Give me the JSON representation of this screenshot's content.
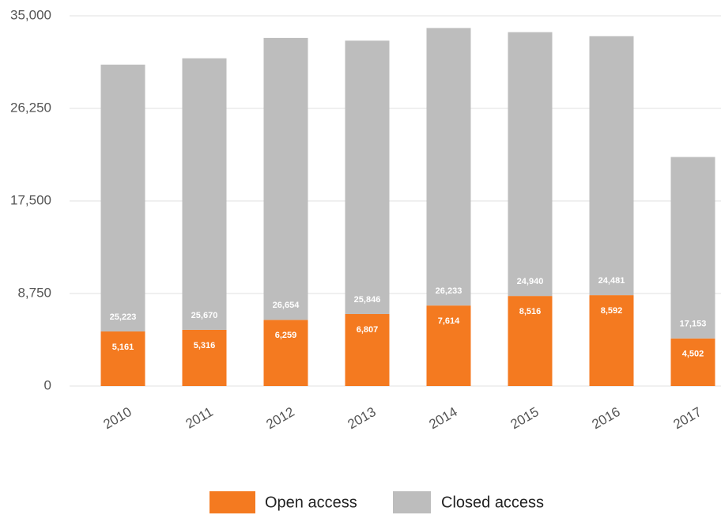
{
  "chart_data": {
    "type": "bar",
    "stacked": true,
    "categories": [
      "2010",
      "2011",
      "2012",
      "2013",
      "2014",
      "2015",
      "2016",
      "2017"
    ],
    "series": [
      {
        "name": "Open access",
        "color": "#f47a20",
        "values": [
          5161,
          5316,
          6259,
          6807,
          7614,
          8516,
          8592,
          4502
        ],
        "value_labels": [
          "5,161",
          "5,316",
          "6,259",
          "6,807",
          "7,614",
          "8,516",
          "8,592",
          "4,502"
        ]
      },
      {
        "name": "Closed access",
        "color": "#bdbdbd",
        "values": [
          25223,
          25670,
          26654,
          25846,
          26233,
          24940,
          24481,
          17153
        ],
        "value_labels": [
          "25,223",
          "25,670",
          "26,654",
          "25,846",
          "26,233",
          "24,940",
          "24,481",
          "17,153"
        ]
      }
    ],
    "ylim": [
      0,
      35000
    ],
    "yticks": [
      0,
      {
        "value": 8750,
        "label": "8,750"
      },
      {
        "value": 17500,
        "label": "17,500"
      },
      {
        "value": 26250,
        "label": "26,250"
      },
      {
        "value": 35000,
        "label": "35,000"
      }
    ],
    "grid": true,
    "legend": "bottom"
  }
}
